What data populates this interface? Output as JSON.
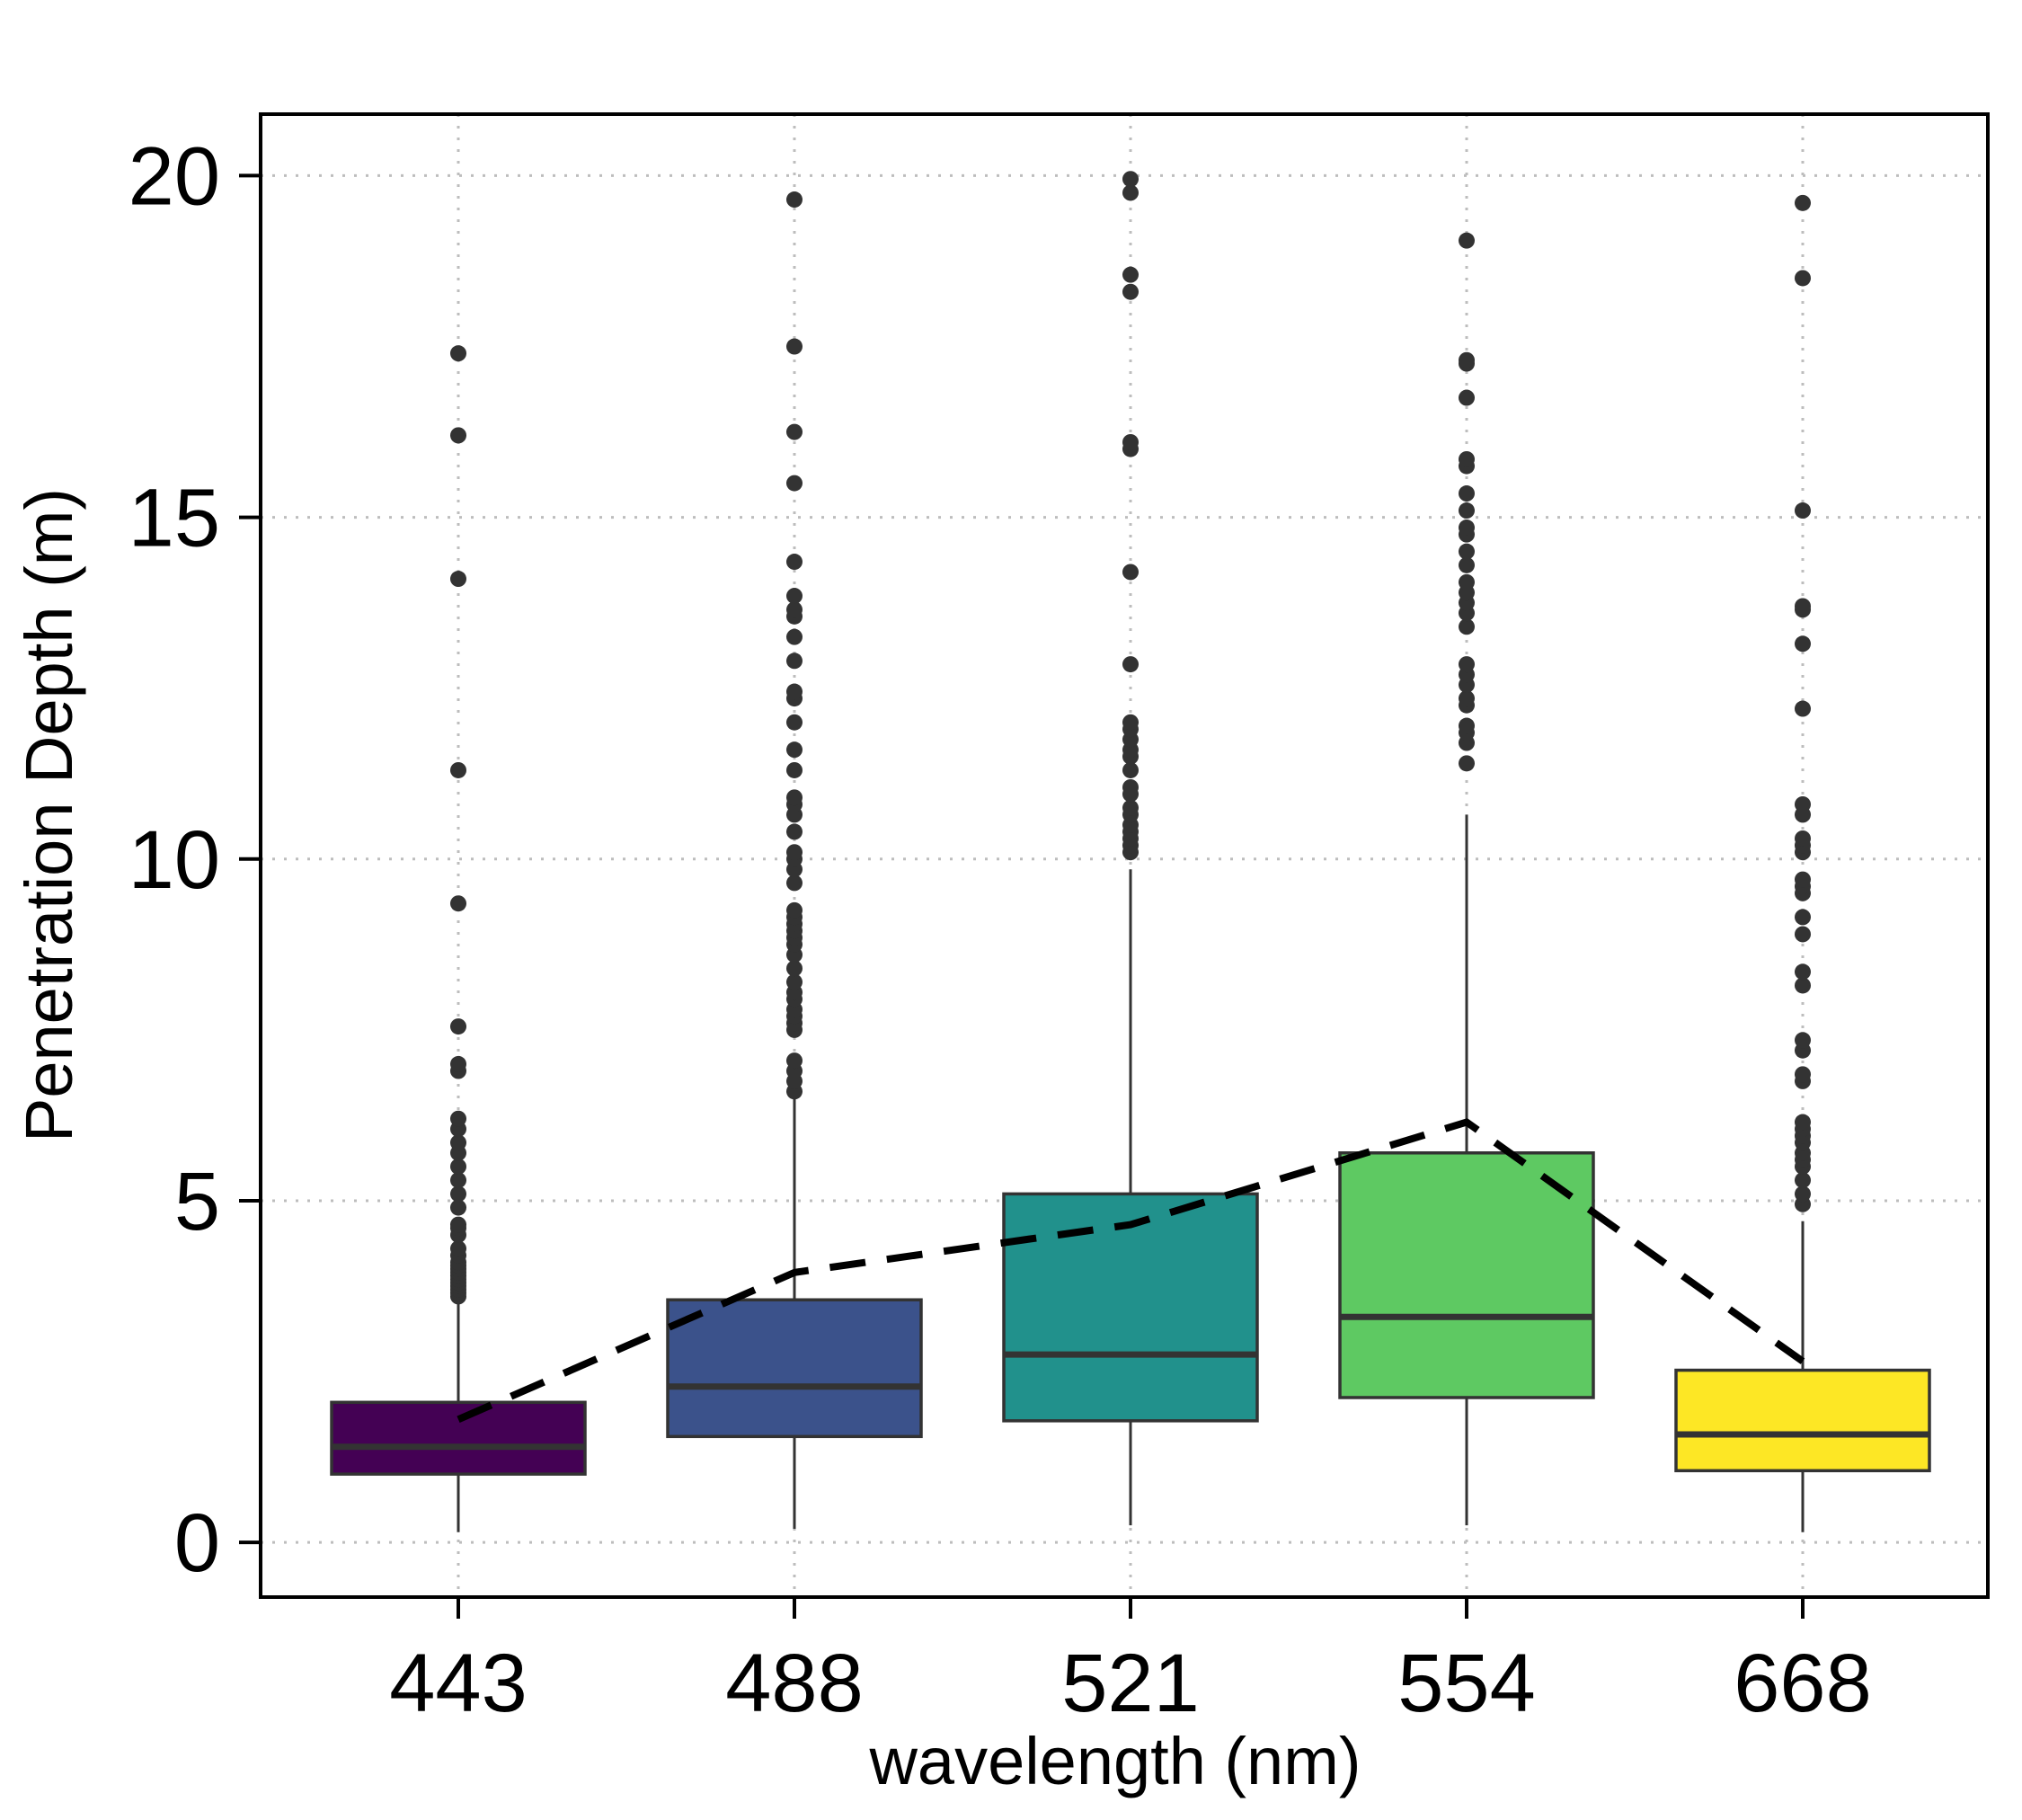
{
  "chart_data": {
    "type": "box",
    "title": "",
    "xlabel": "wavelength (nm)",
    "ylabel": "Penetration Depth (m)",
    "ylim": [
      -0.8,
      20.9
    ],
    "yticks": [
      0,
      5,
      10,
      15,
      20
    ],
    "grid": true,
    "grid_style": "dotted",
    "categories": [
      "443",
      "488",
      "521",
      "554",
      "668"
    ],
    "boxes": [
      {
        "category": "443",
        "color": "#440154",
        "whisker_low": 0.15,
        "q1": 1.0,
        "median": 1.4,
        "q3": 2.05,
        "whisker_high": 3.5,
        "outliers": [
          3.6,
          3.65,
          3.7,
          3.75,
          3.8,
          3.85,
          3.9,
          3.95,
          4.0,
          4.05,
          4.1,
          4.2,
          4.3,
          4.5,
          4.6,
          4.65,
          4.9,
          5.1,
          5.3,
          5.5,
          5.7,
          5.85,
          6.05,
          6.2,
          6.9,
          7.0,
          7.55,
          9.35,
          11.3,
          14.1,
          16.2,
          17.4
        ]
      },
      {
        "category": "488",
        "color": "#3b528b",
        "whisker_low": 0.2,
        "q1": 1.55,
        "median": 2.28,
        "q3": 3.55,
        "whisker_high": 6.5,
        "outliers": [
          6.6,
          6.75,
          6.9,
          7.05,
          7.5,
          7.6,
          7.7,
          7.8,
          7.95,
          8.05,
          8.2,
          8.4,
          8.6,
          8.75,
          8.85,
          8.95,
          9.05,
          9.15,
          9.25,
          9.65,
          9.85,
          10.0,
          10.1,
          10.4,
          10.65,
          10.8,
          10.9,
          11.3,
          11.6,
          12.0,
          12.35,
          12.45,
          12.9,
          13.25,
          13.55,
          13.65,
          13.85,
          14.35,
          15.5,
          16.25,
          17.5,
          19.65
        ]
      },
      {
        "category": "521",
        "color": "#21918c",
        "whisker_low": 0.25,
        "q1": 1.78,
        "median": 2.75,
        "q3": 5.1,
        "whisker_high": 9.85,
        "outliers": [
          10.1,
          10.2,
          10.3,
          10.4,
          10.5,
          10.65,
          10.75,
          10.95,
          11.05,
          11.3,
          11.5,
          11.6,
          11.75,
          11.9,
          12.0,
          12.85,
          14.2,
          16.0,
          16.1,
          18.3,
          18.55,
          19.75,
          19.95
        ]
      },
      {
        "category": "554",
        "color": "#5ec962",
        "whisker_low": 0.25,
        "q1": 2.12,
        "median": 3.3,
        "q3": 5.7,
        "whisker_high": 10.65,
        "outliers": [
          11.4,
          11.7,
          11.85,
          11.95,
          12.25,
          12.35,
          12.55,
          12.7,
          12.85,
          13.4,
          13.6,
          13.75,
          13.9,
          14.05,
          14.3,
          14.5,
          14.75,
          14.85,
          15.1,
          15.35,
          15.75,
          15.85,
          16.75,
          17.25,
          17.3,
          19.05
        ]
      },
      {
        "category": "668",
        "color": "#fde725",
        "whisker_low": 0.15,
        "q1": 1.05,
        "median": 1.58,
        "q3": 2.52,
        "whisker_high": 4.7,
        "outliers": [
          4.95,
          5.1,
          5.3,
          5.5,
          5.6,
          5.7,
          5.85,
          5.95,
          6.05,
          6.15,
          6.75,
          6.85,
          7.2,
          7.35,
          8.15,
          8.35,
          8.9,
          9.15,
          9.5,
          9.6,
          9.7,
          10.1,
          10.2,
          10.3,
          10.65,
          10.8,
          12.2,
          13.15,
          13.65,
          13.7,
          15.1,
          18.5,
          19.6
        ]
      }
    ],
    "mean_line": {
      "style": "dashed",
      "color": "#000000",
      "values": [
        1.8,
        3.95,
        4.65,
        6.15,
        2.65
      ]
    }
  }
}
